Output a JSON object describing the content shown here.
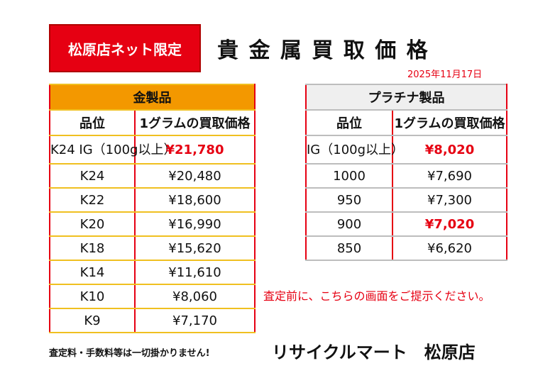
{
  "badge": "松原店ネット限定",
  "title": "貴 金 属 買 取 価 格",
  "date": "2025年11月17日",
  "gold": {
    "header": "金製品",
    "col_grade": "品位",
    "col_price": "1グラムの買取価格",
    "rows": [
      {
        "grade": "K24 IG（100g以上）",
        "price": "¥21,780",
        "highlight": true
      },
      {
        "grade": "K24",
        "price": "¥20,480",
        "highlight": false
      },
      {
        "grade": "K22",
        "price": "¥18,600",
        "highlight": false
      },
      {
        "grade": "K20",
        "price": "¥16,990",
        "highlight": false
      },
      {
        "grade": "K18",
        "price": "¥15,620",
        "highlight": false
      },
      {
        "grade": "K14",
        "price": "¥11,610",
        "highlight": false
      },
      {
        "grade": "K10",
        "price": "¥8,060",
        "highlight": false
      },
      {
        "grade": "K9",
        "price": "¥7,170",
        "highlight": false
      }
    ]
  },
  "platinum": {
    "header": "プラチナ製品",
    "col_grade": "品位",
    "col_price": "1グラムの買取価格",
    "rows": [
      {
        "grade": "IG（100g以上）",
        "price": "¥8,020",
        "highlight": true
      },
      {
        "grade": "1000",
        "price": "¥7,690",
        "highlight": false
      },
      {
        "grade": "950",
        "price": "¥7,300",
        "highlight": false
      },
      {
        "grade": "900",
        "price": "¥7,020",
        "highlight": true
      },
      {
        "grade": "850",
        "price": "¥6,620",
        "highlight": false
      }
    ]
  },
  "notice": "査定前に、こちらの画面をご提示ください。",
  "fee_note": "査定料・手数料等は一切掛かりません!",
  "store_name": "リサイクルマート　松原店"
}
